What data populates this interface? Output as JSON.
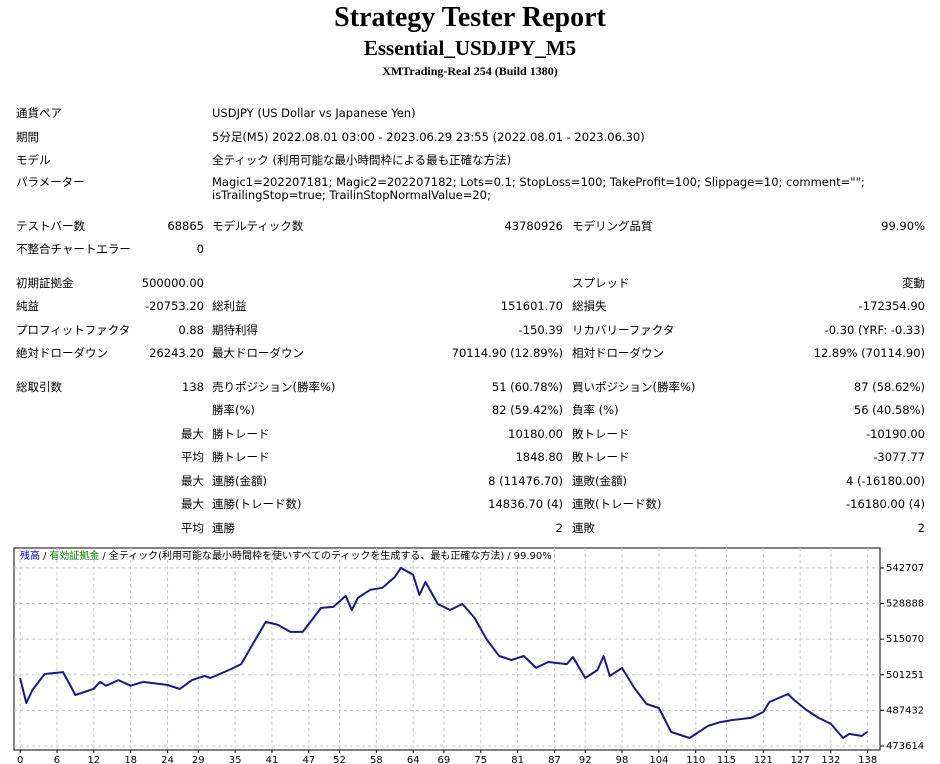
{
  "header": {
    "title": "Strategy Tester Report",
    "subtitle": "Essential_USDJPY_M5",
    "build": "XMTrading-Real 254 (Build 1380)"
  },
  "info": [
    {
      "label": "通貨ペア",
      "value": "USDJPY (US Dollar vs Japanese Yen)"
    },
    {
      "label": "期間",
      "value": "5分足(M5) 2022.08.01 03:00 - 2023.06.29 23:55 (2022.08.01 - 2023.06.30)"
    },
    {
      "label": "モデル",
      "value": "全ティック (利用可能な最小時間枠による最も正確な方法)"
    },
    {
      "label": "パラメーター",
      "value": "Magic1=202207181; Magic2=202207182; Lots=0.1; StopLoss=100; TakeProfit=100; Slippage=10; comment=\"\"; isTrailingStop=true; TrailinStopNormalValue=20;"
    }
  ],
  "stats": [
    [
      {
        "label1": "テストバー数",
        "value1": "68865",
        "label2": "モデルティック数",
        "value2": "43780926",
        "label3": "モデリング品質",
        "value3": "99.90%"
      },
      {
        "label1": "不整合チャートエラー",
        "value1": "0"
      }
    ],
    [
      {
        "label1": "初期証拠金",
        "value1": "500000.00",
        "label3": "スプレッド",
        "value3": "変動"
      },
      {
        "label1": "純益",
        "value1": "-20753.20",
        "label2": "総利益",
        "value2": "151601.70",
        "label3": "総損失",
        "value3": "-172354.90"
      },
      {
        "label1": "プロフィットファクタ",
        "value1": "0.88",
        "label2": "期待利得",
        "value2": "-150.39",
        "label3": "リカバリーファクタ",
        "value3": "-0.30 (YRF: -0.33)"
      },
      {
        "label1": "絶対ドローダウン",
        "value1": "26243.20",
        "label2": "最大ドローダウン",
        "value2": "70114.90 (12.89%)",
        "label3": "相対ドローダウン",
        "value3": "12.89% (70114.90)"
      }
    ],
    [
      {
        "label1": "総取引数",
        "value1": "138",
        "label2": "売りポジション(勝率%)",
        "value2": "51 (60.78%)",
        "label3": "買いポジション(勝率%)",
        "value3": "87 (58.62%)"
      },
      {
        "label2": "勝率(%)",
        "value2": "82 (59.42%)",
        "label3": "負率 (%)",
        "value3": "56 (40.58%)"
      },
      {
        "value1": "最大",
        "label2": "勝トレード",
        "value2": "10180.00",
        "label3": "敗トレード",
        "value3": "-10190.00"
      },
      {
        "value1": "平均",
        "label2": "勝トレード",
        "value2": "1848.80",
        "label3": "敗トレード",
        "value3": "-3077.77"
      },
      {
        "value1": "最大",
        "label2": "連勝(金額)",
        "value2": "8 (11476.70)",
        "label3": "連敗(金額)",
        "value3": "4 (-16180.00)"
      },
      {
        "value1": "最大",
        "label2": "連勝(トレード数)",
        "value2": "14836.70 (4)",
        "label3": "連敗(トレード数)",
        "value3": "-16180.00 (4)"
      },
      {
        "value1": "平均",
        "label2": "連勝",
        "value2": "2",
        "label3": "連敗",
        "value3": "2"
      }
    ]
  ],
  "chart_data": {
    "type": "line",
    "legend": [
      {
        "text": "残高",
        "color": "#0000cc"
      },
      {
        "text": "/",
        "color": "#000000"
      },
      {
        "text": "有効証拠金",
        "color": "#008000"
      },
      {
        "text": "/",
        "color": "#000000"
      },
      {
        "text": "全ティック(利用可能な最小時間枠を使いすべてのティックを生成する、最も正確な方法)",
        "color": "#000000"
      },
      {
        "text": "/",
        "color": "#000000"
      },
      {
        "text": "99.90%",
        "color": "#000000"
      }
    ],
    "x": [
      0,
      1,
      2,
      3,
      4,
      7,
      9,
      12,
      13,
      14,
      16,
      18,
      20,
      24,
      26,
      28,
      30,
      31,
      34,
      36,
      38,
      40,
      42,
      44,
      46,
      49,
      51,
      53,
      54,
      55,
      57,
      59,
      61,
      62,
      64,
      65,
      66,
      68,
      70,
      72,
      74,
      76,
      78,
      80,
      82,
      84,
      86,
      89,
      90,
      92,
      94,
      95,
      96,
      98,
      100,
      102,
      104,
      106,
      109,
      112,
      114,
      116,
      119,
      121,
      122,
      125,
      126,
      128,
      130,
      132,
      134,
      135,
      137,
      138
    ],
    "series": [
      {
        "color": "#1a1a80",
        "values": [
          500000,
          490300,
          495350,
          498500,
          501560,
          502300,
          493400,
          495800,
          498500,
          497000,
          499200,
          497000,
          498500,
          497300,
          495750,
          499200,
          500800,
          500000,
          503100,
          505400,
          513600,
          521750,
          520600,
          517900,
          517900,
          527200,
          527600,
          531850,
          526400,
          531100,
          534200,
          535000,
          539200,
          542700,
          540000,
          532200,
          537300,
          528700,
          526400,
          528700,
          523300,
          514800,
          508550,
          507000,
          508550,
          503900,
          506200,
          505400,
          508150,
          500000,
          503100,
          508550,
          500800,
          503900,
          496100,
          489900,
          488350,
          479050,
          476700,
          481400,
          482900,
          483700,
          484500,
          486800,
          490700,
          493800,
          491500,
          487600,
          484500,
          482200,
          476700,
          478300,
          477500,
          479250
        ]
      }
    ],
    "xlim": [
      -1,
      140
    ],
    "xticks": [
      0,
      6,
      12,
      18,
      24,
      29,
      35,
      41,
      47,
      52,
      58,
      64,
      69,
      75,
      81,
      87,
      92,
      98,
      104,
      110,
      115,
      121,
      127,
      132,
      138
    ],
    "ylim": [
      472060,
      550438
    ],
    "yticks": [
      473614,
      487432,
      501251,
      515070,
      528888,
      542707
    ],
    "grid": true
  }
}
